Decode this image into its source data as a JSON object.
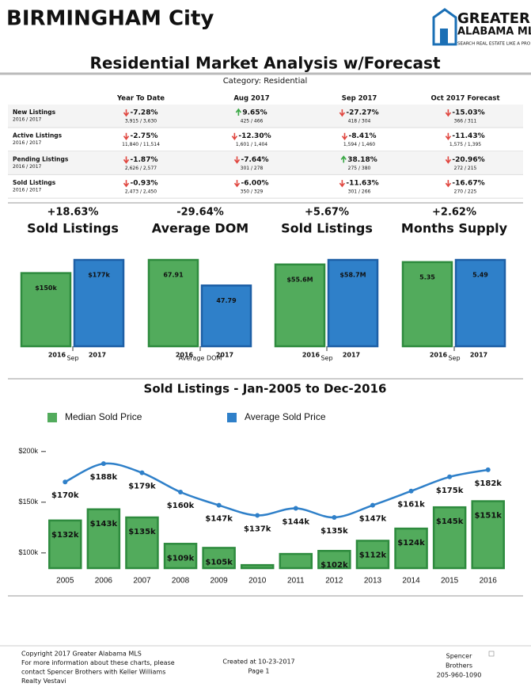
{
  "header": {
    "city": "BIRMINGHAM City",
    "logo_line1": "GREATER",
    "logo_line2": "ALABAMA MLS",
    "logo_tagline": "SEARCH REAL ESTATE LIKE A PRO"
  },
  "title": "Residential Market Analysis w/Forecast",
  "category": "Category: Residential",
  "table": {
    "columns": [
      "Year To Date",
      "Aug 2017",
      "Sep 2017",
      "Oct 2017 Forecast"
    ],
    "rows": [
      {
        "label": "New Listings",
        "sub": "2016 / 2017",
        "cells": [
          {
            "change": "-7.28%",
            "detail": "3,915 / 3,630",
            "dir": "down"
          },
          {
            "change": "9.65%",
            "detail": "425 / 466",
            "dir": "up"
          },
          {
            "change": "-27.27%",
            "detail": "418 / 304",
            "dir": "down"
          },
          {
            "change": "-15.03%",
            "detail": "366 / 311",
            "dir": "down"
          }
        ]
      },
      {
        "label": "Active Listings",
        "sub": "2016 / 2017",
        "cells": [
          {
            "change": "-2.75%",
            "detail": "11,840 / 11,514",
            "dir": "down"
          },
          {
            "change": "-12.30%",
            "detail": "1,601 / 1,404",
            "dir": "down"
          },
          {
            "change": "-8.41%",
            "detail": "1,594 / 1,460",
            "dir": "down"
          },
          {
            "change": "-11.43%",
            "detail": "1,575 / 1,395",
            "dir": "down"
          }
        ]
      },
      {
        "label": "Pending Listings",
        "sub": "2016 / 2017",
        "cells": [
          {
            "change": "-1.87%",
            "detail": "2,626 / 2,577",
            "dir": "down"
          },
          {
            "change": "-7.64%",
            "detail": "301 / 278",
            "dir": "down"
          },
          {
            "change": "38.18%",
            "detail": "275 / 380",
            "dir": "up"
          },
          {
            "change": "-20.96%",
            "detail": "272 / 215",
            "dir": "down"
          }
        ]
      },
      {
        "label": "Sold Listings",
        "sub": "2016 / 2017",
        "cells": [
          {
            "change": "-0.93%",
            "detail": "2,473 / 2,450",
            "dir": "down"
          },
          {
            "change": "-6.00%",
            "detail": "350 / 329",
            "dir": "down"
          },
          {
            "change": "-11.63%",
            "detail": "301 / 266",
            "dir": "down"
          },
          {
            "change": "-16.67%",
            "detail": "270 / 225",
            "dir": "down"
          }
        ]
      }
    ]
  },
  "chart_data": [
    {
      "type": "bar",
      "change": "+18.63%",
      "dir": "up",
      "title": "Sold Listings",
      "xlabel": "Sep",
      "categories": [
        "2016",
        "2017"
      ],
      "values": [
        150,
        177
      ],
      "value_labels": [
        "$150k",
        "$177k"
      ],
      "colors": [
        "#52ab5c",
        "#2f80c9"
      ]
    },
    {
      "type": "bar",
      "change": "-29.64%",
      "dir": "down",
      "title": "Average DOM",
      "xlabel": "Average DOM",
      "categories": [
        "2016",
        "2017"
      ],
      "values": [
        67.91,
        47.79
      ],
      "colors": [
        "#52ab5c",
        "#2f80c9"
      ]
    },
    {
      "type": "bar",
      "change": "+5.67%",
      "dir": "up",
      "title": "Sold Listings",
      "xlabel": "Sep",
      "categories": [
        "2016",
        "2017"
      ],
      "values": [
        55.6,
        58.7
      ],
      "value_labels": [
        "$55.6M",
        "$58.7M"
      ],
      "colors": [
        "#52ab5c",
        "#2f80c9"
      ]
    },
    {
      "type": "bar",
      "change": "+2.62%",
      "dir": "up",
      "title": "Months Supply",
      "xlabel": "Sep",
      "categories": [
        "2016",
        "2017"
      ],
      "values": [
        5.35,
        5.49
      ],
      "colors": [
        "#52ab5c",
        "#2f80c9"
      ]
    },
    {
      "type": "combo",
      "title": "Sold Listings - Jan-2005 to Dec-2016",
      "categories": [
        "2005",
        "2006",
        "2007",
        "2008",
        "2009",
        "2010",
        "2011",
        "2012",
        "2013",
        "2014",
        "2015",
        "2016"
      ],
      "series": [
        {
          "name": "Median Sold Price",
          "color": "#52ab5c",
          "kind": "bar",
          "values": [
            132,
            143,
            135,
            109,
            105,
            88,
            99,
            102,
            112,
            124,
            145,
            151
          ],
          "value_labels": [
            "$132k",
            "$143k",
            "$135k",
            "$109k",
            "$105k",
            null,
            null,
            "$102k",
            "$112k",
            "$124k",
            "$145k",
            "$151k"
          ]
        },
        {
          "name": "Average Sold Price",
          "color": "#2f80c9",
          "kind": "line",
          "values": [
            170,
            188,
            179,
            160,
            147,
            137,
            144,
            135,
            147,
            161,
            175,
            182
          ],
          "value_labels": [
            "$170k",
            "$188k",
            "$179k",
            "$160k",
            "$147k",
            "$137k",
            "$144k",
            "$135k",
            "$147k",
            "$161k",
            "$175k",
            "$182k"
          ]
        }
      ],
      "ylim": [
        85,
        205
      ],
      "yticks": [
        {
          "value": 100,
          "label": "$100k"
        },
        {
          "value": 150,
          "label": "$150k"
        },
        {
          "value": 200,
          "label": "$200k"
        }
      ]
    }
  ],
  "footer": {
    "left": [
      "Copyright 2017 Greater Alabama MLS",
      "For more information about these charts, please",
      "contact Spencer Brothers with Keller Williams",
      "Realty Vestavi"
    ],
    "center": [
      "Created at 10-23-2017",
      "Page 1"
    ],
    "right": [
      "Spencer",
      "Brothers",
      "205-960-1090"
    ]
  }
}
